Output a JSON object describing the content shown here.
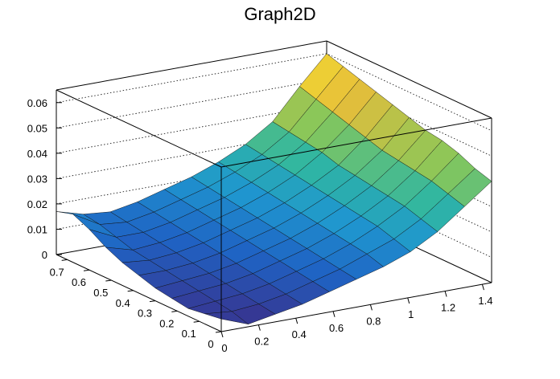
{
  "chart_data": {
    "type": "surface",
    "title": "Graph2D",
    "xlabel": "",
    "ylabel": "",
    "zlabel": "",
    "xlim": [
      0,
      1.45
    ],
    "ylim": [
      0,
      0.75
    ],
    "zlim": [
      0,
      0.065
    ],
    "x_ticks": [
      "0",
      "0.2",
      "0.4",
      "0.6",
      "0.8",
      "1",
      "1.2",
      "1.4"
    ],
    "x_tick_values": [
      0,
      0.2,
      0.4,
      0.6,
      0.8,
      1.0,
      1.2,
      1.4
    ],
    "y_ticks": [
      "0",
      "0.1",
      "0.2",
      "0.3",
      "0.4",
      "0.5",
      "0.6",
      "0.7"
    ],
    "y_tick_values": [
      0,
      0.1,
      0.2,
      0.3,
      0.4,
      0.5,
      0.6,
      0.7
    ],
    "z_ticks": [
      "0",
      "0.01",
      "0.02",
      "0.03",
      "0.04",
      "0.05",
      "0.06"
    ],
    "z_tick_values": [
      0,
      0.01,
      0.02,
      0.03,
      0.04,
      0.05,
      0.06
    ],
    "grid": true,
    "colormap": [
      "#3a2f8a",
      "#1f63c4",
      "#1f96cf",
      "#2fb6a3",
      "#87c75a",
      "#e7bd3a",
      "#f8ee2a"
    ],
    "surface": {
      "x": [
        0,
        0.145,
        0.29,
        0.435,
        0.58,
        0.725,
        0.87,
        1.015,
        1.16,
        1.305,
        1.45
      ],
      "y": [
        0,
        0.075,
        0.15,
        0.225,
        0.3,
        0.375,
        0.45,
        0.525,
        0.6,
        0.675,
        0.75
      ],
      "z": [
        [
          0.005,
          0.001,
          0.003,
          0.005,
          0.008,
          0.011,
          0.014,
          0.018,
          0.024,
          0.032,
          0.04
        ],
        [
          0.004,
          0.003,
          0.004,
          0.006,
          0.009,
          0.012,
          0.016,
          0.02,
          0.026,
          0.034,
          0.042
        ],
        [
          0.003,
          0.004,
          0.005,
          0.007,
          0.01,
          0.013,
          0.017,
          0.022,
          0.028,
          0.036,
          0.045
        ],
        [
          0.004,
          0.005,
          0.006,
          0.008,
          0.011,
          0.014,
          0.018,
          0.023,
          0.029,
          0.037,
          0.047
        ],
        [
          0.005,
          0.006,
          0.007,
          0.009,
          0.012,
          0.015,
          0.019,
          0.024,
          0.03,
          0.038,
          0.048
        ],
        [
          0.007,
          0.007,
          0.008,
          0.01,
          0.013,
          0.016,
          0.02,
          0.025,
          0.031,
          0.039,
          0.05
        ],
        [
          0.009,
          0.008,
          0.009,
          0.011,
          0.014,
          0.017,
          0.021,
          0.026,
          0.032,
          0.041,
          0.052
        ],
        [
          0.012,
          0.009,
          0.01,
          0.012,
          0.015,
          0.018,
          0.022,
          0.027,
          0.034,
          0.043,
          0.054
        ],
        [
          0.016,
          0.011,
          0.011,
          0.013,
          0.016,
          0.019,
          0.023,
          0.028,
          0.035,
          0.045,
          0.056
        ],
        [
          0.019,
          0.013,
          0.012,
          0.014,
          0.017,
          0.02,
          0.024,
          0.029,
          0.036,
          0.047,
          0.058
        ],
        [
          0.017,
          0.014,
          0.013,
          0.015,
          0.018,
          0.021,
          0.025,
          0.03,
          0.037,
          0.049,
          0.06
        ]
      ]
    }
  }
}
